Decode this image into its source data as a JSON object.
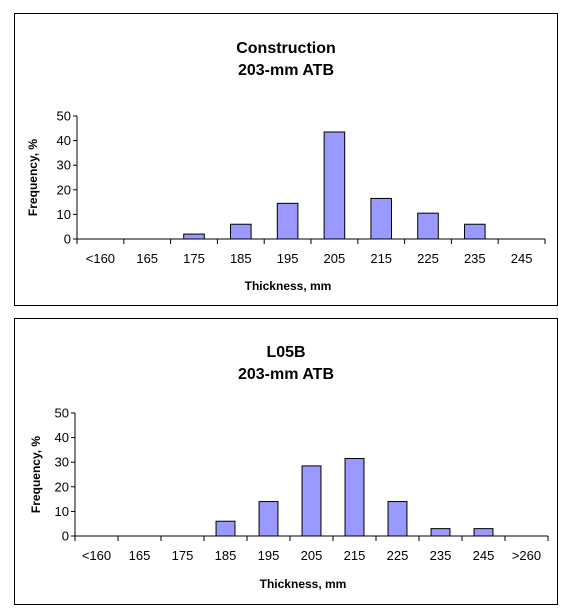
{
  "chart_data": [
    {
      "type": "bar",
      "title": "Construction",
      "subtitle": "203-mm ATB",
      "xlabel": "Thickness, mm",
      "ylabel": "Frequency, %",
      "ylim": [
        0,
        50
      ],
      "yticks": [
        0,
        10,
        20,
        30,
        40,
        50
      ],
      "categories": [
        "<160",
        "165",
        "175",
        "185",
        "195",
        "205",
        "215",
        "225",
        "235",
        "245"
      ],
      "values": [
        0,
        0,
        2,
        6,
        14.5,
        43.5,
        16.5,
        10.5,
        6,
        0
      ],
      "bar_color": "#9999ff",
      "grid": false,
      "legend": "none"
    },
    {
      "type": "bar",
      "title": "L05B",
      "subtitle": "203-mm ATB",
      "xlabel": "Thickness, mm",
      "ylabel": "Frequency, %",
      "ylim": [
        0,
        50
      ],
      "yticks": [
        0,
        10,
        20,
        30,
        40,
        50
      ],
      "categories": [
        "<160",
        "165",
        "175",
        "185",
        "195",
        "205",
        "215",
        "225",
        "235",
        "245",
        ">260"
      ],
      "values": [
        0,
        0,
        0,
        6,
        14,
        28.5,
        31.5,
        14,
        3,
        3,
        0
      ],
      "bar_color": "#9999ff",
      "grid": false,
      "legend": "none"
    }
  ]
}
